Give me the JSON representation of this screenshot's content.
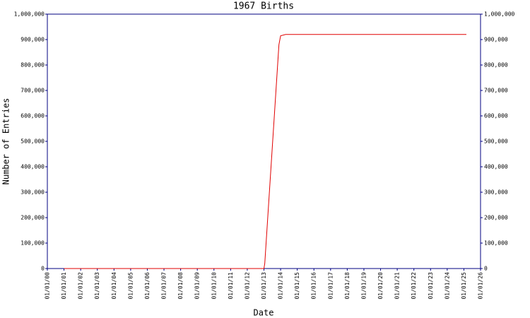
{
  "chart_data": {
    "type": "line",
    "title": "1967 Births",
    "x_label": "Date",
    "y_label": "Number of Entries",
    "x": [
      1,
      13,
      13.05,
      13.9,
      14,
      14.3,
      25.15
    ],
    "series": [
      {
        "name": "Entries",
        "color": "#e00000",
        "values": [
          0,
          0,
          20000,
          880000,
          915000,
          920000,
          920000
        ]
      }
    ],
    "xlim": [
      0,
      26
    ],
    "xticks": [
      {
        "value": 0,
        "label": "01/01/00"
      },
      {
        "value": 1,
        "label": "01/01/01"
      },
      {
        "value": 2,
        "label": "01/01/02"
      },
      {
        "value": 3,
        "label": "01/01/03"
      },
      {
        "value": 4,
        "label": "01/01/04"
      },
      {
        "value": 5,
        "label": "01/01/05"
      },
      {
        "value": 6,
        "label": "01/01/06"
      },
      {
        "value": 7,
        "label": "01/01/07"
      },
      {
        "value": 8,
        "label": "01/01/08"
      },
      {
        "value": 9,
        "label": "01/01/09"
      },
      {
        "value": 10,
        "label": "01/01/10"
      },
      {
        "value": 11,
        "label": "01/01/11"
      },
      {
        "value": 12,
        "label": "01/01/12"
      },
      {
        "value": 13,
        "label": "01/01/13"
      },
      {
        "value": 14,
        "label": "01/01/14"
      },
      {
        "value": 15,
        "label": "01/01/15"
      },
      {
        "value": 16,
        "label": "01/01/16"
      },
      {
        "value": 17,
        "label": "01/01/17"
      },
      {
        "value": 18,
        "label": "01/01/18"
      },
      {
        "value": 19,
        "label": "01/01/19"
      },
      {
        "value": 20,
        "label": "01/01/20"
      },
      {
        "value": 21,
        "label": "01/01/21"
      },
      {
        "value": 22,
        "label": "01/01/22"
      },
      {
        "value": 23,
        "label": "01/01/23"
      },
      {
        "value": 24,
        "label": "01/01/24"
      },
      {
        "value": 25,
        "label": "01/01/25"
      },
      {
        "value": 26,
        "label": "01/01/26"
      }
    ],
    "ylim": [
      0,
      1000000
    ],
    "yticks": [
      0,
      {
        "value": 100000,
        "label": "100,000"
      },
      {
        "value": 200000,
        "label": "200,000"
      },
      {
        "value": 300000,
        "label": "300,000"
      },
      {
        "value": 400000,
        "label": "400,000"
      },
      {
        "value": 500000,
        "label": "500,000"
      },
      {
        "value": 600000,
        "label": "600,000"
      },
      {
        "value": 700000,
        "label": "700,000"
      },
      {
        "value": 800000,
        "label": "800,000"
      },
      {
        "value": 900000,
        "label": "900,000"
      },
      {
        "value": 1000000,
        "label": "1,000,000"
      }
    ],
    "y2lim": [
      0,
      1000000
    ],
    "y2ticks": [
      0,
      {
        "value": 100000,
        "label": "100,000"
      },
      {
        "value": 200000,
        "label": "200,000"
      },
      {
        "value": 300000,
        "label": "300,000"
      },
      {
        "value": 400000,
        "label": "400,000"
      },
      {
        "value": 500000,
        "label": "500,000"
      },
      {
        "value": 600000,
        "label": "600,000"
      },
      {
        "value": 700000,
        "label": "700,000"
      },
      {
        "value": 800000,
        "label": "800,000"
      },
      {
        "value": 900000,
        "label": "900,000"
      },
      {
        "value": 1000000,
        "label": "1,000,000"
      }
    ],
    "axis_color": "#000080"
  }
}
